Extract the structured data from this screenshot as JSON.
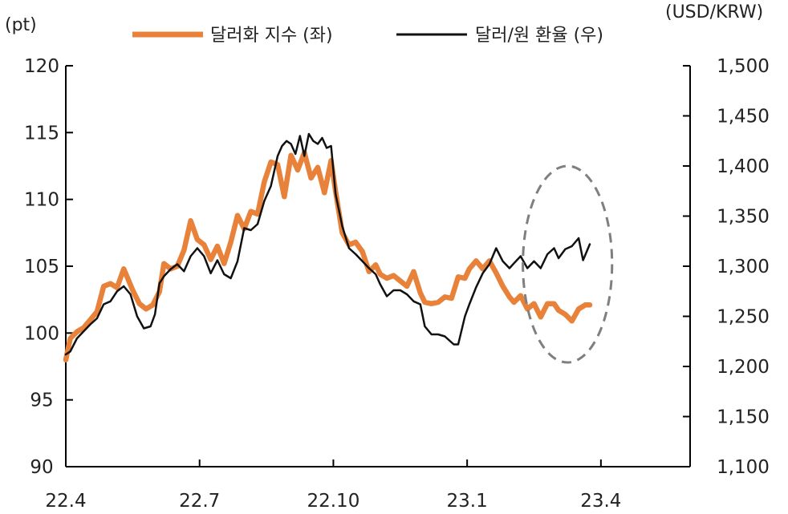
{
  "chart_data": {
    "type": "line",
    "left_unit": "(pt)",
    "right_unit": "(USD/KRW)",
    "x_ticks": [
      "22.4",
      "22.7",
      "22.10",
      "23.1",
      "23.4"
    ],
    "y_left": {
      "min": 90,
      "max": 120,
      "ticks": [
        "90",
        "95",
        "100",
        "105",
        "110",
        "115",
        "120"
      ]
    },
    "y_right": {
      "min": 1100,
      "max": 1500,
      "ticks": [
        "1,100",
        "1,150",
        "1,200",
        "1,250",
        "1,300",
        "1,350",
        "1,400",
        "1,450",
        "1,500"
      ]
    },
    "x_range": [
      0,
      14
    ],
    "grid": false,
    "legend_position": "top",
    "highlight_ellipse": {
      "x_center": 11.25,
      "y_center": 1302,
      "x_radius": 1.0,
      "y_radius": 98
    },
    "series": [
      {
        "name": "달러화 지수 (좌)",
        "axis": "left",
        "color": "#E8823A",
        "x": [
          0.0,
          0.1,
          0.25,
          0.4,
          0.55,
          0.7,
          0.85,
          1.0,
          1.15,
          1.3,
          1.5,
          1.65,
          1.8,
          1.95,
          2.1,
          2.2,
          2.35,
          2.5,
          2.65,
          2.8,
          2.95,
          3.1,
          3.25,
          3.4,
          3.55,
          3.7,
          3.85,
          4.0,
          4.15,
          4.3,
          4.45,
          4.6,
          4.75,
          4.9,
          5.05,
          5.2,
          5.35,
          5.5,
          5.65,
          5.8,
          5.95,
          6.05,
          6.2,
          6.35,
          6.5,
          6.65,
          6.8,
          6.95,
          7.05,
          7.2,
          7.35,
          7.5,
          7.65,
          7.8,
          7.95,
          8.05,
          8.2,
          8.35,
          8.5,
          8.65,
          8.8,
          8.95,
          9.05,
          9.2,
          9.35,
          9.5,
          9.65,
          9.8,
          9.95,
          10.05,
          10.2,
          10.35,
          10.5,
          10.65,
          10.8,
          10.95,
          11.05,
          11.2,
          11.35,
          11.5,
          11.65,
          11.75
        ],
        "y": [
          98.0,
          99.6,
          100.1,
          100.4,
          101.0,
          101.6,
          103.5,
          103.7,
          103.4,
          104.8,
          103.2,
          102.2,
          101.8,
          102.1,
          103.1,
          105.2,
          104.8,
          105.0,
          106.2,
          108.4,
          107.0,
          106.6,
          105.5,
          106.5,
          105.2,
          106.8,
          108.8,
          107.8,
          109.1,
          108.9,
          111.3,
          112.8,
          112.6,
          110.2,
          113.3,
          112.2,
          113.5,
          111.6,
          112.4,
          110.5,
          112.9,
          110.6,
          107.5,
          106.6,
          106.8,
          106.1,
          104.6,
          105.1,
          104.4,
          104.1,
          104.3,
          103.9,
          103.5,
          104.6,
          103.0,
          102.3,
          102.2,
          102.3,
          102.7,
          102.6,
          104.2,
          104.1,
          104.8,
          105.4,
          104.8,
          105.4,
          104.5,
          103.5,
          102.7,
          102.3,
          102.8,
          101.8,
          102.2,
          101.2,
          102.2,
          102.2,
          101.7,
          101.4,
          100.9,
          101.8,
          102.1,
          102.1
        ]
      },
      {
        "name": "달러/원 환율 (우)",
        "axis": "right",
        "color": "#111111",
        "x": [
          0.0,
          0.1,
          0.25,
          0.4,
          0.55,
          0.7,
          0.85,
          1.0,
          1.15,
          1.3,
          1.45,
          1.6,
          1.75,
          1.9,
          2.0,
          2.1,
          2.2,
          2.35,
          2.5,
          2.65,
          2.8,
          2.95,
          3.1,
          3.25,
          3.4,
          3.55,
          3.7,
          3.85,
          4.0,
          4.15,
          4.3,
          4.45,
          4.6,
          4.75,
          4.85,
          4.95,
          5.05,
          5.15,
          5.25,
          5.35,
          5.45,
          5.55,
          5.65,
          5.75,
          5.85,
          5.95,
          6.05,
          6.2,
          6.35,
          6.5,
          6.65,
          6.8,
          6.95,
          7.05,
          7.2,
          7.35,
          7.5,
          7.65,
          7.8,
          7.95,
          8.05,
          8.2,
          8.35,
          8.5,
          8.6,
          8.7,
          8.8,
          8.95,
          9.05,
          9.2,
          9.35,
          9.5,
          9.65,
          9.8,
          9.95,
          10.05,
          10.2,
          10.35,
          10.5,
          10.65,
          10.8,
          10.95,
          11.05,
          11.2,
          11.35,
          11.5,
          11.6,
          11.75
        ],
        "y": [
          1212,
          1215,
          1228,
          1235,
          1242,
          1248,
          1262,
          1265,
          1275,
          1280,
          1272,
          1250,
          1238,
          1240,
          1252,
          1283,
          1290,
          1297,
          1302,
          1295,
          1310,
          1318,
          1310,
          1293,
          1306,
          1292,
          1288,
          1305,
          1338,
          1336,
          1342,
          1365,
          1380,
          1410,
          1420,
          1425,
          1422,
          1412,
          1430,
          1410,
          1432,
          1425,
          1422,
          1428,
          1418,
          1420,
          1372,
          1340,
          1318,
          1312,
          1305,
          1298,
          1292,
          1282,
          1270,
          1276,
          1276,
          1272,
          1265,
          1262,
          1240,
          1232,
          1232,
          1230,
          1226,
          1222,
          1222,
          1250,
          1262,
          1279,
          1293,
          1302,
          1318,
          1305,
          1298,
          1303,
          1310,
          1298,
          1305,
          1298,
          1312,
          1318,
          1308,
          1317,
          1320,
          1328,
          1306,
          1322
        ]
      }
    ]
  }
}
